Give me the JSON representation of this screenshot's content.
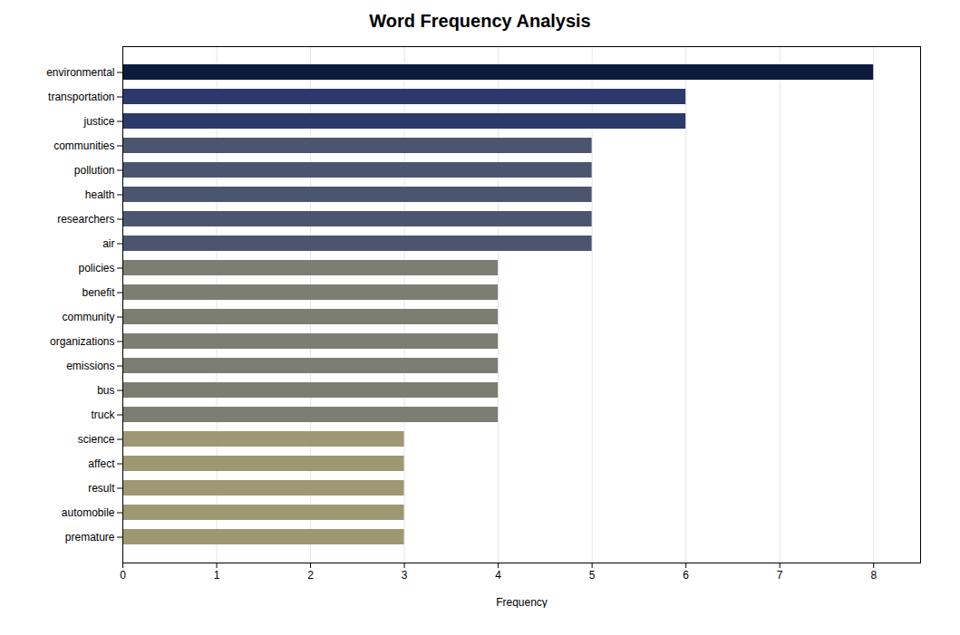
{
  "chart_data": {
    "type": "bar",
    "orientation": "horizontal",
    "title": "Word Frequency Analysis",
    "xlabel": "Frequency",
    "categories": [
      "environmental",
      "transportation",
      "justice",
      "communities",
      "pollution",
      "health",
      "researchers",
      "air",
      "policies",
      "benefit",
      "community",
      "organizations",
      "emissions",
      "bus",
      "truck",
      "science",
      "affect",
      "result",
      "automobile",
      "premature"
    ],
    "values": [
      8,
      6,
      6,
      5,
      5,
      5,
      5,
      5,
      4,
      4,
      4,
      4,
      4,
      4,
      4,
      3,
      3,
      3,
      3,
      3
    ],
    "colors": [
      "#0c1a3e",
      "#2b3a6b",
      "#2b3a6b",
      "#4c5570",
      "#4c5570",
      "#4c5570",
      "#4c5570",
      "#4c5570",
      "#7c7e72",
      "#7c7e72",
      "#7c7e72",
      "#7c7e72",
      "#7c7e72",
      "#7c7e72",
      "#7c7e72",
      "#9e9872",
      "#9e9872",
      "#9e9872",
      "#9e9872",
      "#9e9872"
    ],
    "xlim": [
      0,
      8.5
    ],
    "xticks": [
      0,
      1,
      2,
      3,
      4,
      5,
      6,
      7,
      8
    ],
    "grid": true
  }
}
